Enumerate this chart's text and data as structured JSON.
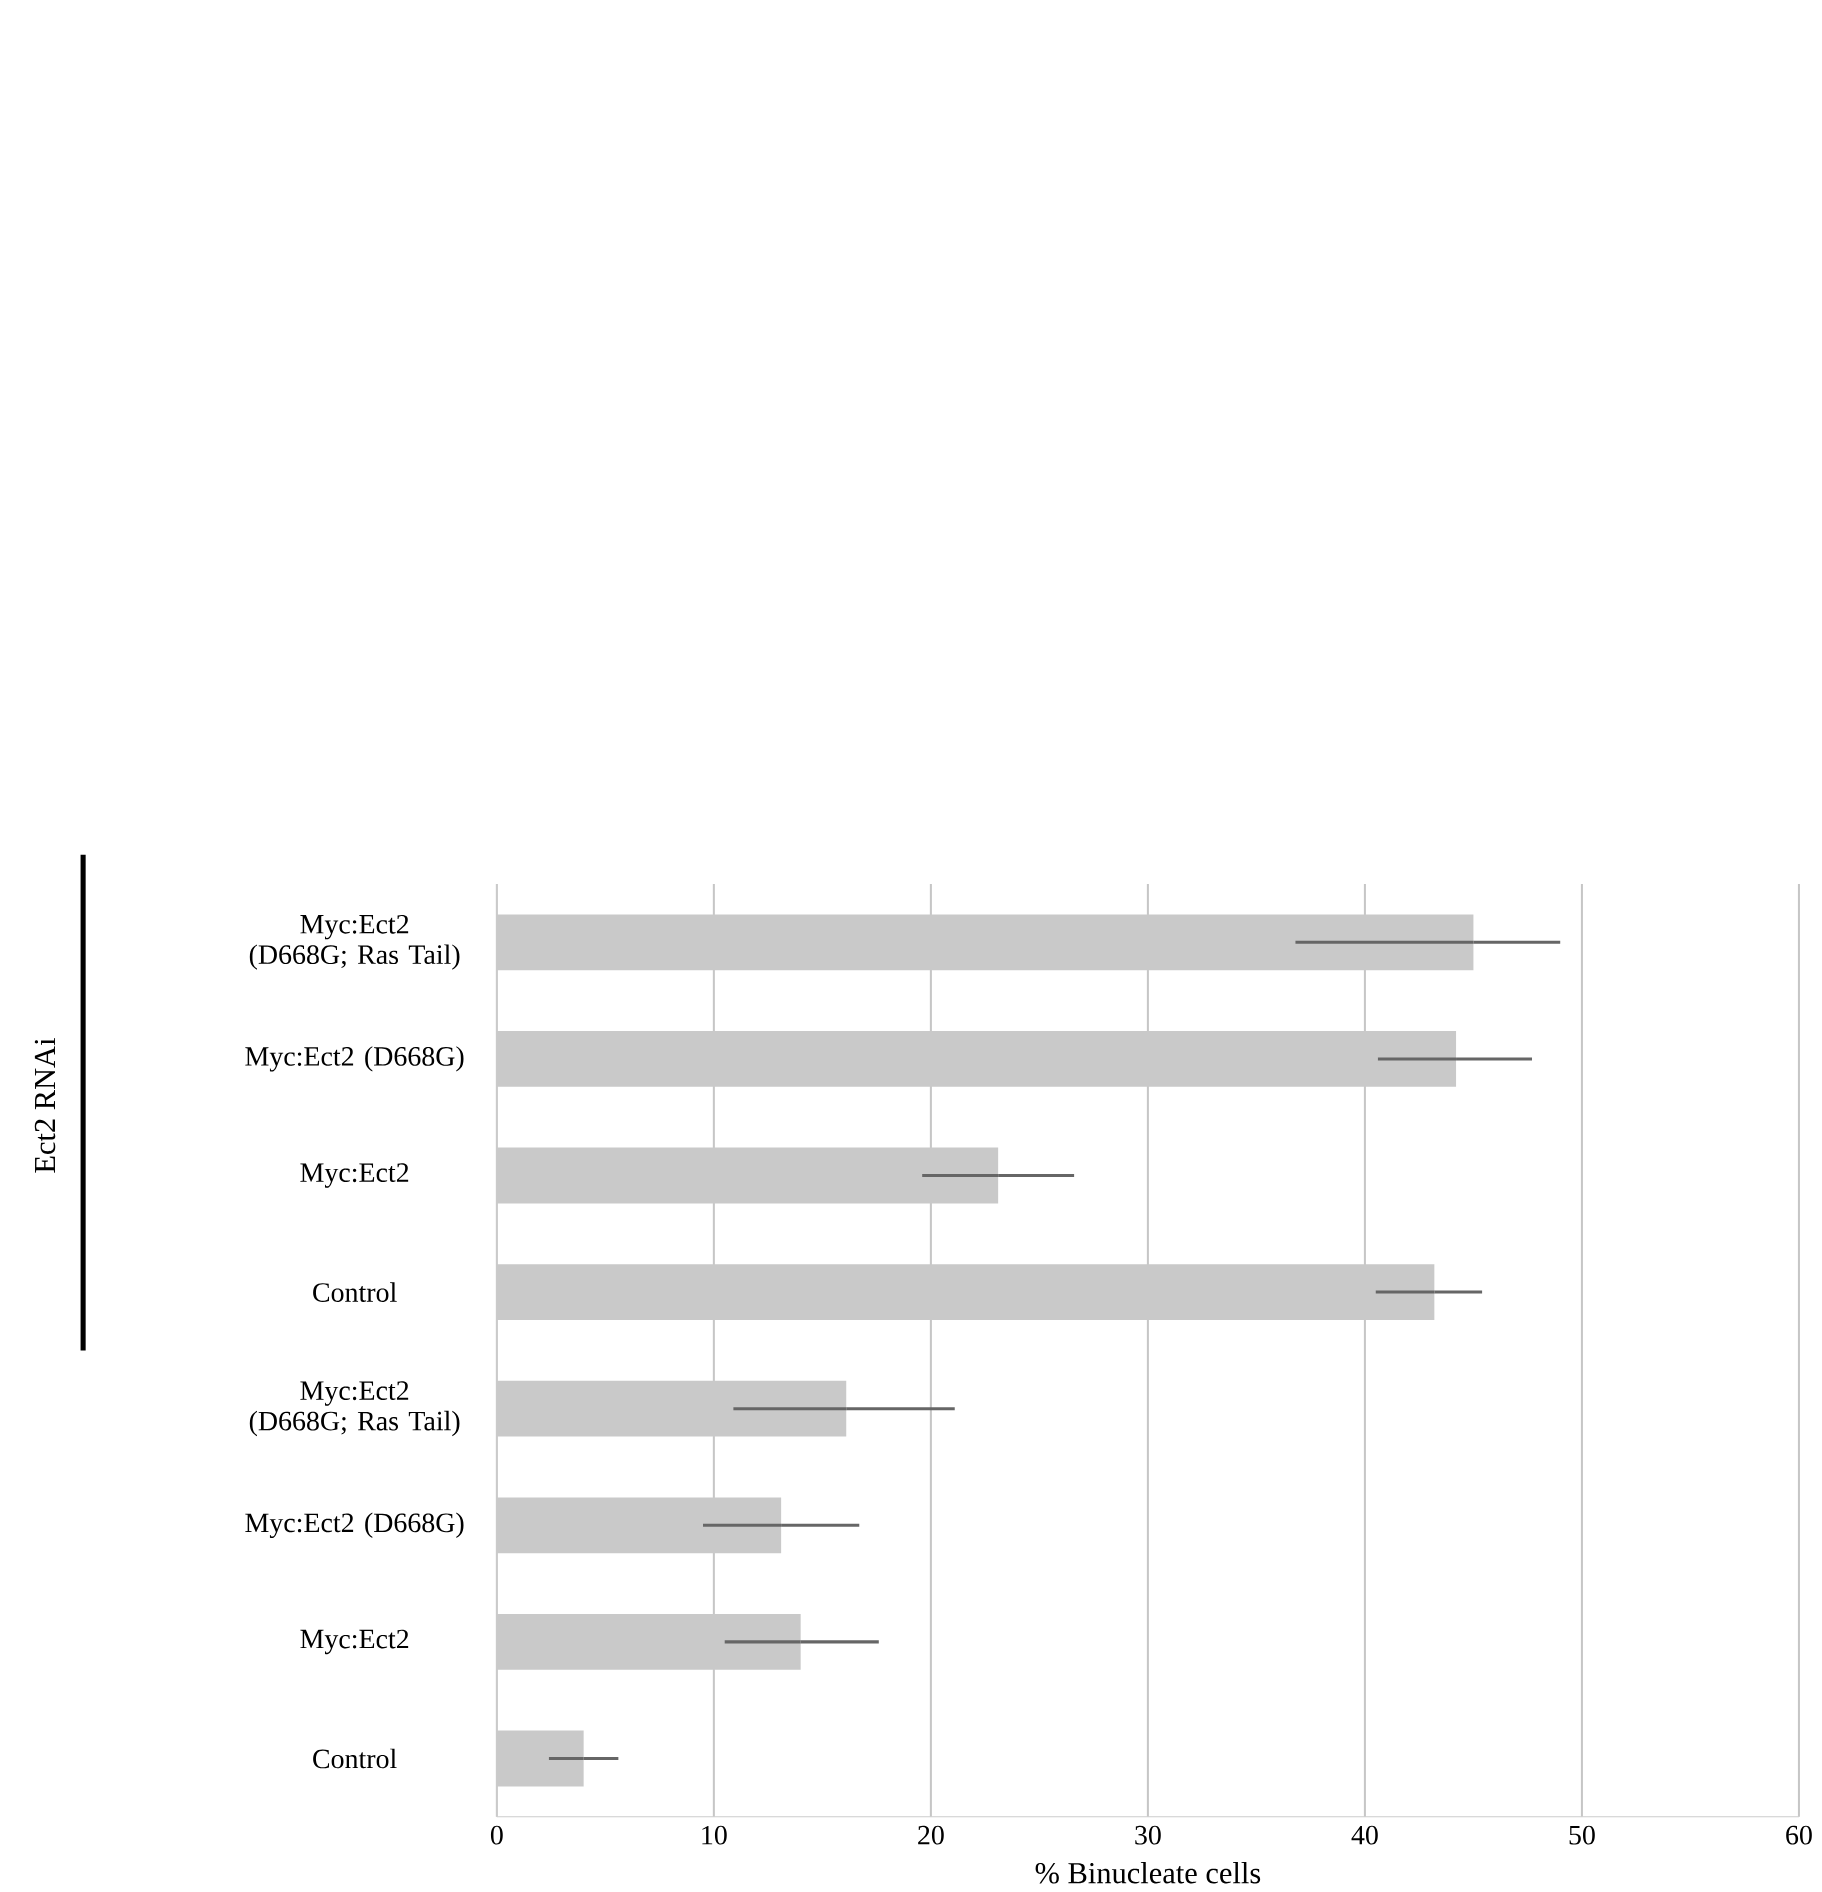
{
  "chart_data": {
    "type": "bar",
    "orientation": "horizontal",
    "categories": [
      "Myc:Ect2 (D668G; Ras Tail)",
      "Myc:Ect2 (D668G)",
      "Myc:Ect2",
      "Control",
      "Myc:Ect2 (D668G; Ras Tail)",
      "Myc:Ect2 (D668G)",
      "Myc:Ect2",
      "Control"
    ],
    "values": [
      45,
      44.2,
      23.1,
      43.2,
      16.1,
      13.1,
      14.0,
      4.0
    ],
    "errors": [
      [
        36.8,
        49.0
      ],
      [
        40.6,
        47.7
      ],
      [
        19.6,
        26.6
      ],
      [
        40.5,
        45.4
      ],
      [
        10.9,
        21.1
      ],
      [
        9.5,
        16.7
      ],
      [
        10.5,
        17.6
      ],
      [
        2.4,
        5.6
      ]
    ],
    "color": "#c9c9c9",
    "xlim": [
      0,
      60
    ],
    "xticks": [
      0,
      10,
      20,
      30,
      40,
      50,
      60
    ],
    "xlabel": "% Binucleate cells",
    "annotations": [
      "Ect2 RNAi"
    ],
    "grid": "x"
  }
}
